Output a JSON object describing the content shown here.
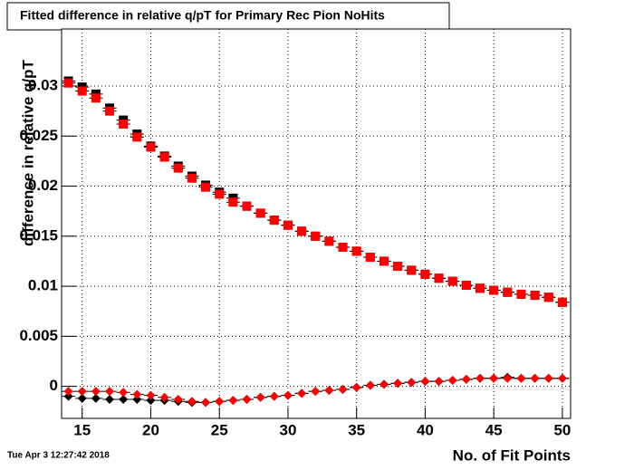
{
  "chart_data": {
    "type": "scatter",
    "title": "Fitted difference in relative q/pT for Primary Rec Pion NoHits",
    "x_label": "No. of Fit Points",
    "y_label": "difference in relative q/pT",
    "timestamp": "Tue Apr  3 12:27:42 2018",
    "xlim": [
      13.5,
      50.6
    ],
    "ylim": [
      -0.0032,
      0.0357
    ],
    "xticks": [
      15,
      20,
      25,
      30,
      35,
      40,
      45,
      50
    ],
    "yticks": [
      0,
      0.005,
      0.01,
      0.015,
      0.02,
      0.025,
      0.03
    ],
    "grid": true,
    "x": [
      14,
      15,
      16,
      17,
      18,
      19,
      20,
      21,
      22,
      23,
      24,
      25,
      26,
      27,
      28,
      29,
      30,
      31,
      32,
      33,
      34,
      35,
      36,
      37,
      38,
      39,
      40,
      41,
      42,
      43,
      44,
      45,
      46,
      47,
      48,
      49,
      50
    ],
    "series": [
      {
        "color": "#000000",
        "marker": "square",
        "values": [
          0.0305,
          0.0299,
          0.0292,
          0.0278,
          0.0266,
          0.0252,
          0.024,
          0.023,
          0.022,
          0.021,
          0.0201,
          0.0194,
          0.0188,
          0.018,
          0.0173,
          0.0166,
          0.0161,
          0.0155,
          0.015,
          0.0145,
          0.0139,
          0.0135,
          0.0129,
          0.0125,
          0.012,
          0.0116,
          0.0112,
          0.0108,
          0.0105,
          0.0101,
          0.0098,
          0.0096,
          0.0094,
          0.0092,
          0.0091,
          0.0089,
          0.0084
        ]
      },
      {
        "color": "#ff0000",
        "marker": "square",
        "values": [
          0.0303,
          0.0295,
          0.0288,
          0.0275,
          0.0262,
          0.0249,
          0.0239,
          0.0229,
          0.0218,
          0.0208,
          0.0199,
          0.0192,
          0.0184,
          0.018,
          0.0173,
          0.0166,
          0.0161,
          0.0155,
          0.015,
          0.0145,
          0.0139,
          0.0135,
          0.0129,
          0.0125,
          0.012,
          0.0116,
          0.0112,
          0.0108,
          0.0105,
          0.0101,
          0.0098,
          0.0096,
          0.0094,
          0.0092,
          0.0091,
          0.0089,
          0.0084
        ]
      },
      {
        "color": "#000000",
        "marker": "diamond",
        "values": [
          -0.001,
          -0.0012,
          -0.0012,
          -0.0013,
          -0.0013,
          -0.0013,
          -0.0014,
          -0.0014,
          -0.0015,
          -0.0016,
          -0.0016,
          -0.0015,
          -0.0014,
          -0.0013,
          -0.0011,
          -0.001,
          -0.0009,
          -0.0007,
          -0.0005,
          -0.0004,
          -0.0003,
          -0.0001,
          0.0001,
          0.0002,
          0.0003,
          0.0004,
          0.0005,
          0.0005,
          0.0006,
          0.0007,
          0.0008,
          0.0008,
          0.0009,
          0.0008,
          0.0008,
          0.0008,
          0.0008
        ]
      },
      {
        "color": "#ff0000",
        "marker": "diamond",
        "values": [
          -0.0005,
          -0.0005,
          -0.0005,
          -0.0005,
          -0.0006,
          -0.0008,
          -0.0009,
          -0.0011,
          -0.0013,
          -0.0015,
          -0.0016,
          -0.0015,
          -0.0014,
          -0.0013,
          -0.0011,
          -0.001,
          -0.0009,
          -0.0007,
          -0.0005,
          -0.0004,
          -0.0003,
          -0.0001,
          0.0001,
          0.0002,
          0.0003,
          0.0004,
          0.0005,
          0.0005,
          0.0006,
          0.0007,
          0.0008,
          0.0008,
          0.0008,
          0.0008,
          0.0008,
          0.0008,
          0.0008
        ]
      }
    ]
  }
}
